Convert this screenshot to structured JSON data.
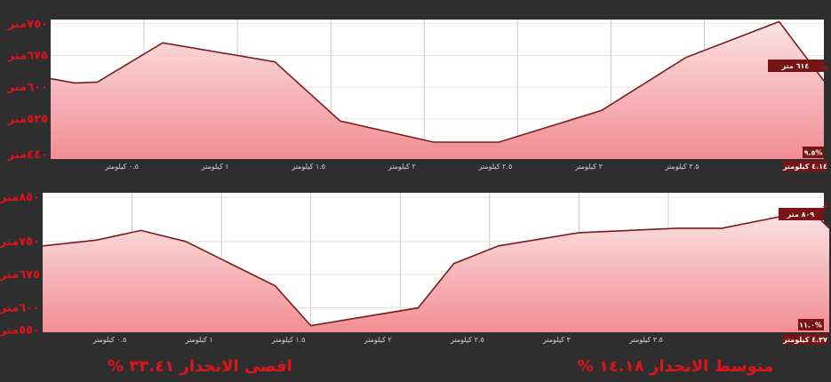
{
  "colors": {
    "background": "#2e2e2e",
    "plot_bg": "#ffffff",
    "fill_top": "#fbe3e3",
    "fill_bottom": "#f28d93",
    "line": "#7a1c1c",
    "axis_label": "#e0141b",
    "tick_label": "#d8d8d8",
    "box": "#7a1414"
  },
  "chart_data": [
    {
      "type": "area",
      "x": [
        0,
        0.13,
        0.25,
        0.6,
        1.2,
        1.55,
        2.05,
        2.4,
        2.95,
        3.4,
        3.9,
        4.14
      ],
      "y": [
        620,
        610,
        612,
        705,
        660,
        520,
        470,
        470,
        545,
        670,
        755,
        615
      ],
      "ylim": [
        430,
        760
      ],
      "xlim": [
        0,
        4.14
      ],
      "y_ticks": [
        {
          "value": 440,
          "label": "٤٤٠متر"
        },
        {
          "value": 525,
          "label": "٥٢٥متر"
        },
        {
          "value": 600,
          "label": "٦٠٠متر"
        },
        {
          "value": 675,
          "label": "٦٧٥متر"
        },
        {
          "value": 750,
          "label": "٧٥٠متر"
        }
      ],
      "x_ticks": [
        {
          "value": 0.5,
          "label": "٠.٥ كيلومتر"
        },
        {
          "value": 1.0,
          "label": "١ كيلومتر"
        },
        {
          "value": 1.5,
          "label": "١.٥ كيلومتر"
        },
        {
          "value": 2.0,
          "label": "٢ كيلومتر"
        },
        {
          "value": 2.5,
          "label": "٢.٥ كيلومتر"
        },
        {
          "value": 3.0,
          "label": "٣ كيلومتر"
        },
        {
          "value": 3.5,
          "label": "٣.٥ كيلومتر"
        }
      ],
      "end_label": "٤.١٤ كيلومتر",
      "current_value_label": "٦١٤ متر",
      "slope_label": "٩.٥%"
    },
    {
      "type": "area",
      "x": [
        0,
        0.3,
        0.55,
        0.8,
        1.3,
        1.5,
        2.1,
        2.3,
        2.55,
        3.0,
        3.55,
        3.8,
        4.3,
        4.4
      ],
      "y": [
        740,
        753,
        775,
        750,
        650,
        560,
        600,
        700,
        740,
        770,
        780,
        780,
        820,
        780
      ],
      "ylim": [
        545,
        860
      ],
      "xlim": [
        0,
        4.37
      ],
      "y_ticks": [
        {
          "value": 550,
          "label": "٥٥٠متر"
        },
        {
          "value": 600,
          "label": "٦٠٠متر"
        },
        {
          "value": 675,
          "label": "٦٧٥متر"
        },
        {
          "value": 750,
          "label": "٧٥٠متر"
        },
        {
          "value": 850,
          "label": "٨٥٠متر"
        }
      ],
      "x_ticks": [
        {
          "value": 0.5,
          "label": "٠.٥ كيلومتر"
        },
        {
          "value": 1.0,
          "label": "١ كيلومتر"
        },
        {
          "value": 1.5,
          "label": "١.٥ كيلومتر"
        },
        {
          "value": 2.0,
          "label": "٢ كيلومتر"
        },
        {
          "value": 2.5,
          "label": "٢.٥ كيلومتر"
        },
        {
          "value": 3.0,
          "label": "٣ كيلومتر"
        },
        {
          "value": 3.5,
          "label": "٣.٥ كيلومتر"
        }
      ],
      "end_label": "٤.٣٧ كيلومتر",
      "current_value_label": "٨٠٩ متر",
      "slope_label": "١١.٠%"
    }
  ],
  "stats": {
    "average_slope": "متوسط الانحدار ١٤.١٨ %",
    "max_slope": "اقصى الانحدار ٣٣.٤١ %"
  }
}
